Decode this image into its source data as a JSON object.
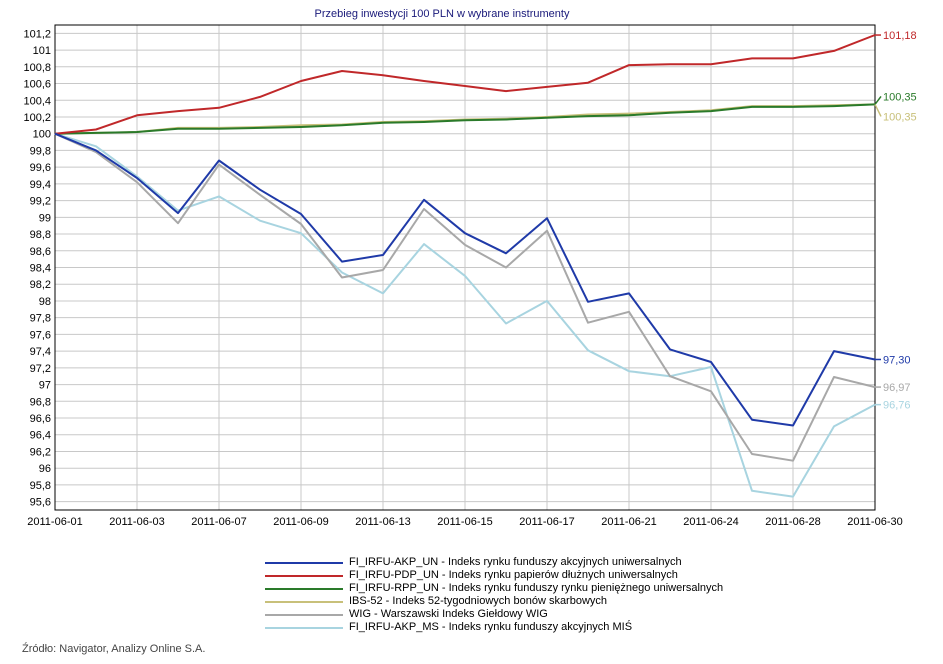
{
  "source": "Źródło: Navigator, Analizy Online S.A.",
  "chart_data": {
    "type": "line",
    "title": "Przebieg inwestycji 100 PLN w wybrane instrumenty",
    "xlabel": "",
    "ylabel": "",
    "ylim": [
      95.5,
      101.3
    ],
    "grid": true,
    "legend_position": "bottom",
    "x": [
      "2011-06-01",
      "2011-06-02",
      "2011-06-03",
      "2011-06-06",
      "2011-06-07",
      "2011-06-08",
      "2011-06-09",
      "2011-06-10",
      "2011-06-13",
      "2011-06-14",
      "2011-06-15",
      "2011-06-16",
      "2011-06-17",
      "2011-06-20",
      "2011-06-21",
      "2011-06-22",
      "2011-06-24",
      "2011-06-27",
      "2011-06-28",
      "2011-06-29",
      "2011-06-30"
    ],
    "x_tick_labels": [
      "2011-06-01",
      "2011-06-03",
      "2011-06-07",
      "2011-06-09",
      "2011-06-13",
      "2011-06-15",
      "2011-06-17",
      "2011-06-21",
      "2011-06-24",
      "2011-06-28",
      "2011-06-30"
    ],
    "y_ticks": [
      "95,6",
      "95,8",
      "96",
      "96,2",
      "96,4",
      "96,6",
      "96,8",
      "97",
      "97,2",
      "97,4",
      "97,6",
      "97,8",
      "98",
      "98,2",
      "98,4",
      "98,6",
      "98,8",
      "99",
      "99,2",
      "99,4",
      "99,6",
      "99,8",
      "100",
      "100,2",
      "100,4",
      "100,6",
      "100,8",
      "101",
      "101,2"
    ],
    "series": [
      {
        "name": "FI_IRFU-AKP_UN - Indeks rynku funduszy akcyjnych uniwersalnych",
        "color": "#1f3aa8",
        "values": [
          100,
          99.8,
          99.47,
          99.05,
          99.68,
          99.33,
          99.04,
          98.47,
          98.55,
          99.21,
          98.81,
          98.57,
          98.99,
          97.99,
          98.09,
          97.42,
          97.27,
          96.58,
          96.51,
          97.4,
          97.3
        ],
        "end_label": "97,30"
      },
      {
        "name": "FI_IRFU-PDP_UN - Indeks rynku papierów dłużnych uniwersalnych",
        "color": "#c0282a",
        "values": [
          100,
          100.05,
          100.22,
          100.27,
          100.31,
          100.44,
          100.63,
          100.75,
          100.7,
          100.63,
          100.57,
          100.51,
          100.56,
          100.61,
          100.82,
          100.83,
          100.83,
          100.9,
          100.9,
          100.99,
          101.18
        ],
        "end_label": "101,18"
      },
      {
        "name": "FI_IRFU-RPP_UN - Indeks rynku funduszy rynku pieniężnego uniwersalnych",
        "color": "#2a7a2a",
        "values": [
          100,
          100.01,
          100.02,
          100.06,
          100.06,
          100.07,
          100.08,
          100.1,
          100.13,
          100.14,
          100.16,
          100.17,
          100.19,
          100.21,
          100.22,
          100.25,
          100.27,
          100.32,
          100.32,
          100.33,
          100.35
        ],
        "end_label": "100,35"
      },
      {
        "name": "IBS-52 - Indeks 52-tygodniowych bonów skarbowych",
        "color": "#c8c07a",
        "values": [
          100,
          100.01,
          100.02,
          100.07,
          100.07,
          100.08,
          100.1,
          100.11,
          100.14,
          100.15,
          100.17,
          100.18,
          100.2,
          100.23,
          100.24,
          100.26,
          100.28,
          100.33,
          100.33,
          100.34,
          100.35
        ],
        "end_label": "100,35"
      },
      {
        "name": "WIG - Warszawski Indeks Giełdowy WIG",
        "color": "#a8a8a8",
        "values": [
          100,
          99.78,
          99.42,
          98.93,
          99.63,
          99.27,
          98.92,
          98.28,
          98.37,
          99.1,
          98.67,
          98.4,
          98.84,
          97.74,
          97.87,
          97.1,
          96.92,
          96.17,
          96.09,
          97.09,
          96.97
        ],
        "end_label": "96,97"
      },
      {
        "name": "FI_IRFU-AKP_MS - Indeks rynku funduszy akcyjnych MIŚ",
        "color": "#a8d4e0",
        "values": [
          100,
          99.85,
          99.49,
          99.08,
          99.25,
          98.96,
          98.81,
          98.34,
          98.09,
          98.68,
          98.3,
          97.73,
          98.0,
          97.41,
          97.16,
          97.1,
          97.21,
          95.73,
          95.66,
          96.5,
          96.76
        ],
        "end_label": "96,76"
      }
    ]
  }
}
